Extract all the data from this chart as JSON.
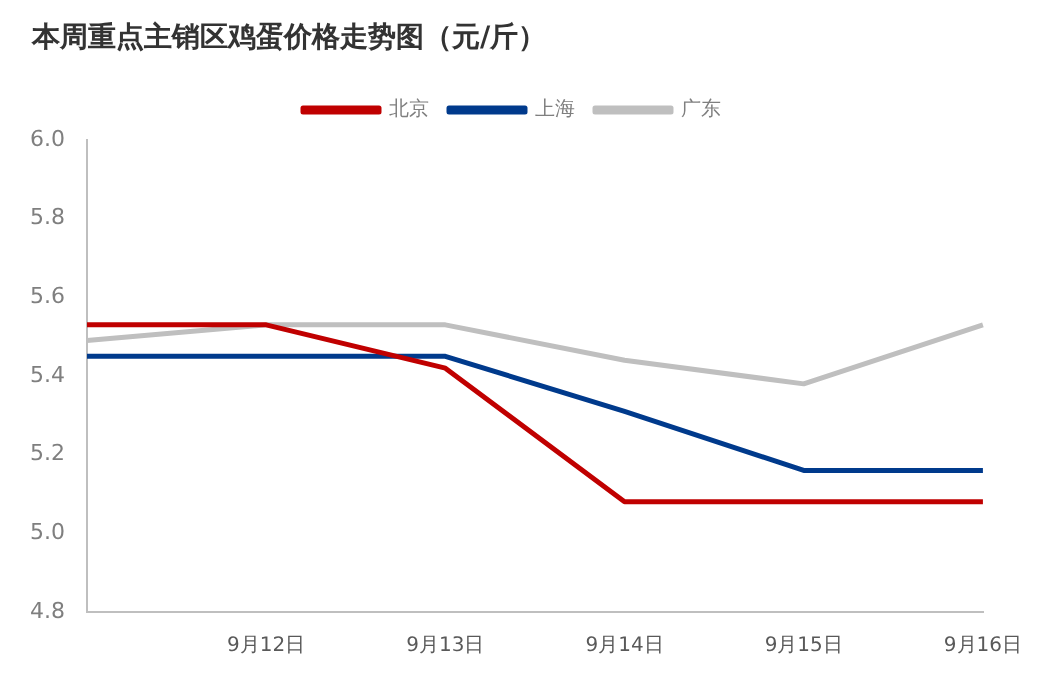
{
  "chart_data": {
    "type": "line",
    "title": "本周重点主销区鸡蛋价格走势图（元/斤）",
    "categories": [
      null,
      "9月12日",
      "9月13日",
      "9月14日",
      "9月15日",
      "9月16日"
    ],
    "series": [
      {
        "name": "北京",
        "color": "#c00000",
        "values": [
          5.53,
          5.53,
          5.42,
          5.08,
          5.08,
          5.08
        ]
      },
      {
        "name": "上海",
        "color": "#003a8c",
        "values": [
          5.45,
          5.45,
          5.45,
          5.31,
          5.16,
          5.16
        ]
      },
      {
        "name": "广东",
        "color": "#bfbfbf",
        "values": [
          5.49,
          5.53,
          5.53,
          5.44,
          5.38,
          5.53
        ]
      }
    ],
    "ylim": [
      4.8,
      6.0
    ],
    "yticks": [
      4.8,
      {
        "value": 5,
        "label": "5.0"
      },
      5.2,
      5.4,
      5.6,
      5.8,
      {
        "value": 6,
        "label": "6.0"
      }
    ],
    "grid": false,
    "legend": "top",
    "marker": "none",
    "line_style": "solid"
  }
}
